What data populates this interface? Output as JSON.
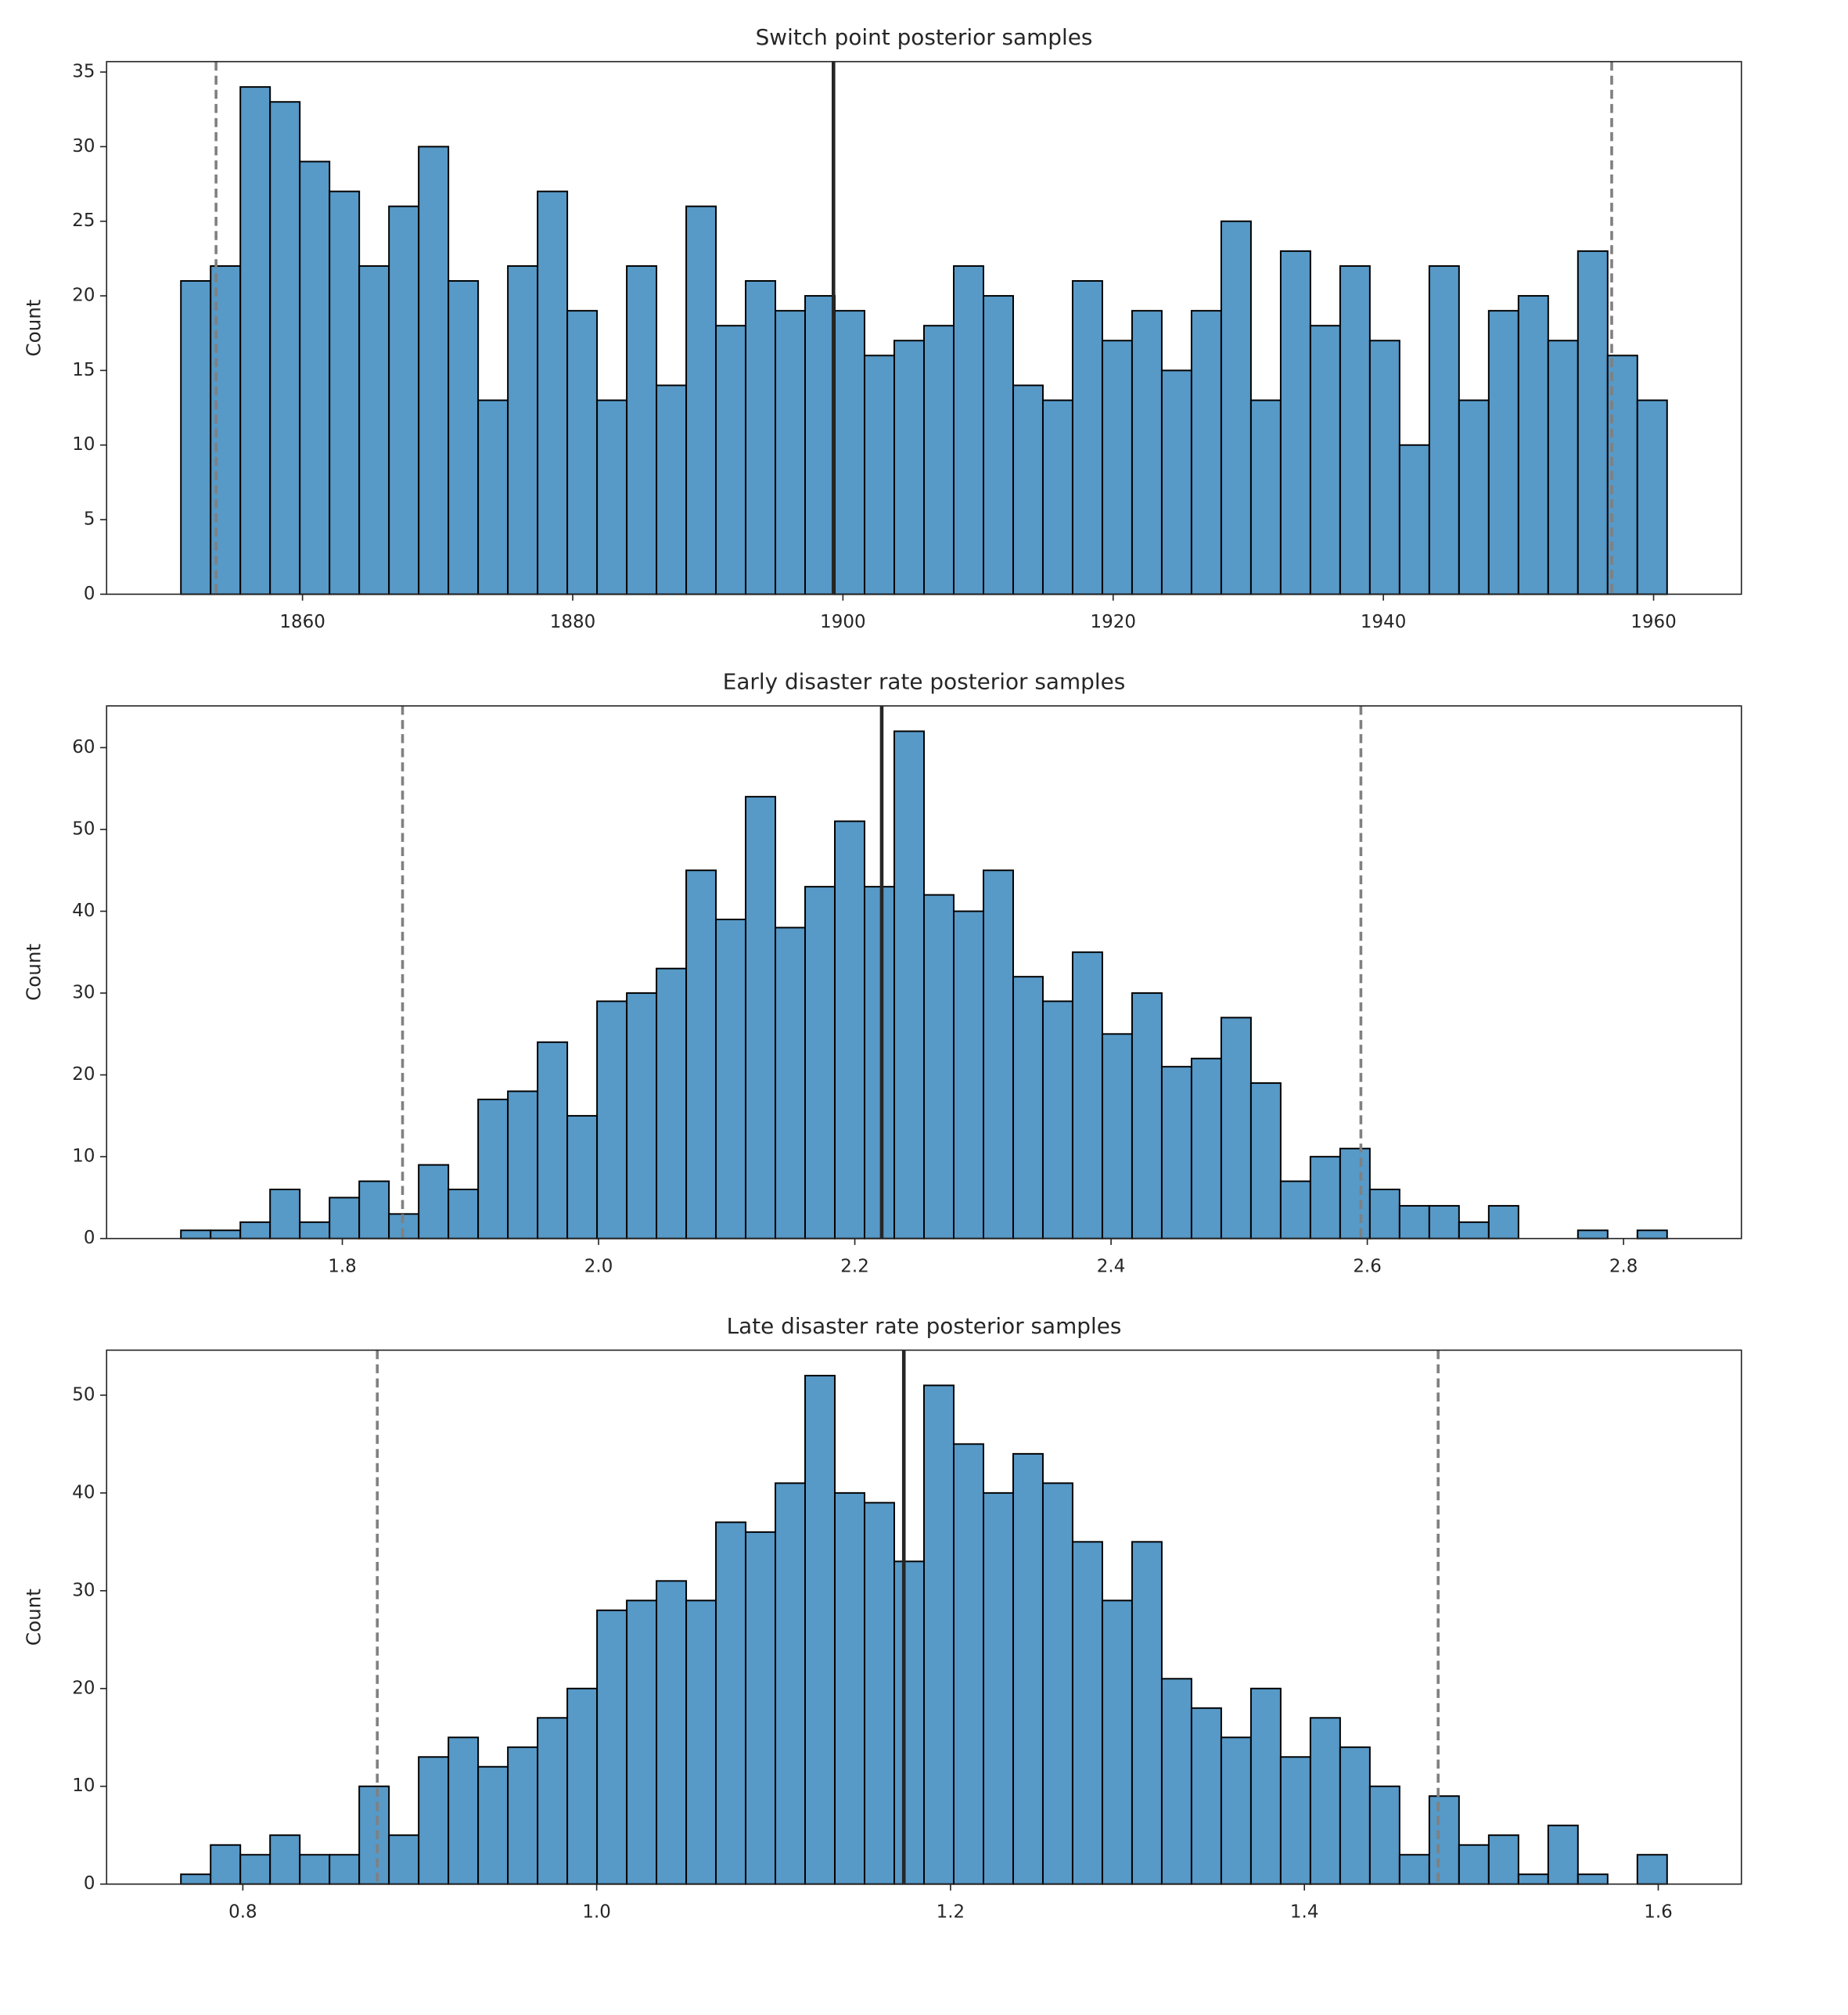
{
  "chart_data": [
    {
      "type": "histogram",
      "title": "Switch point posterior samples",
      "ylabel": "Count",
      "color": "#5799c7",
      "edgecolor": "#000000",
      "bins": [
        1851,
        1853.2,
        1855.4,
        1857.6,
        1859.8,
        1862,
        1864.2,
        1866.4,
        1868.6,
        1870.8,
        1873,
        1875.2,
        1877.4,
        1879.6,
        1881.8,
        1884,
        1886.2,
        1888.4,
        1890.6,
        1892.8,
        1895,
        1897.2,
        1899.4,
        1901.6,
        1903.8,
        1906,
        1908.2,
        1910.4,
        1912.6,
        1914.8,
        1917,
        1919.2,
        1921.4,
        1923.6,
        1925.8,
        1928,
        1930.2,
        1932.4,
        1934.6,
        1936.8,
        1939,
        1941.2,
        1943.4,
        1945.6,
        1947.8,
        1950,
        1952.2,
        1954.4,
        1956.6,
        1958.8,
        1961
      ],
      "values": [
        21,
        22,
        34,
        33,
        29,
        27,
        22,
        26,
        30,
        21,
        13,
        22,
        27,
        19,
        13,
        22,
        14,
        26,
        18,
        21,
        19,
        20,
        19,
        16,
        17,
        18,
        22,
        20,
        14,
        13,
        21,
        17,
        19,
        15,
        19,
        25,
        13,
        23,
        18,
        22,
        17,
        10,
        22,
        13,
        19,
        20,
        17,
        23,
        16,
        13
      ],
      "xlim": [
        1845.5,
        1966.5
      ],
      "ylim": [
        0,
        35.7
      ],
      "xticks": [
        1860,
        1880,
        1900,
        1920,
        1940,
        1960
      ],
      "yticks": [
        0,
        5,
        10,
        15,
        20,
        25,
        30,
        35
      ],
      "vlines": [
        {
          "x": 1853.6,
          "color": "#808080",
          "dashed": true
        },
        {
          "x": 1899.3,
          "color": "#262626",
          "dashed": false
        },
        {
          "x": 1956.9,
          "color": "#808080",
          "dashed": true
        }
      ]
    },
    {
      "type": "histogram",
      "title": "Early disaster rate posterior samples",
      "ylabel": "Count",
      "color": "#5799c7",
      "edgecolor": "#000000",
      "bins": [
        1.674,
        1.6972,
        1.7204,
        1.7436,
        1.7668,
        1.79,
        1.8132,
        1.8364,
        1.8596,
        1.8828,
        1.906,
        1.9292,
        1.9524,
        1.9756,
        1.9988,
        2.022,
        2.0452,
        2.0684,
        2.0916,
        2.1148,
        2.138,
        2.1612,
        2.1844,
        2.2076,
        2.2308,
        2.254,
        2.2772,
        2.3004,
        2.3236,
        2.3468,
        2.37,
        2.3932,
        2.4164,
        2.4396,
        2.4628,
        2.486,
        2.5092,
        2.5324,
        2.5556,
        2.5788,
        2.602,
        2.6252,
        2.6484,
        2.6716,
        2.6948,
        2.718,
        2.7412,
        2.7644,
        2.7876,
        2.8108,
        2.834
      ],
      "values": [
        1,
        1,
        2,
        6,
        2,
        5,
        7,
        3,
        9,
        6,
        17,
        18,
        24,
        15,
        29,
        30,
        33,
        45,
        39,
        54,
        38,
        43,
        51,
        43,
        62,
        42,
        40,
        45,
        32,
        29,
        35,
        25,
        30,
        21,
        22,
        27,
        19,
        7,
        10,
        11,
        6,
        4,
        4,
        2,
        4,
        0,
        0,
        1,
        0,
        1
      ],
      "xlim": [
        1.616,
        2.892
      ],
      "ylim": [
        0,
        65.1
      ],
      "xticks": [
        1.8,
        {
          "value": 2,
          "label": "2.0"
        },
        2.2,
        2.4,
        2.6,
        2.8
      ],
      "yticks": [
        0,
        10,
        20,
        30,
        40,
        50,
        60
      ],
      "vlines": [
        {
          "x": 1.847,
          "color": "#808080",
          "dashed": true
        },
        {
          "x": 2.221,
          "color": "#262626",
          "dashed": false
        },
        {
          "x": 2.595,
          "color": "#808080",
          "dashed": true
        }
      ]
    },
    {
      "type": "histogram",
      "title": "Late disaster rate posterior samples",
      "ylabel": "Count",
      "color": "#5799c7",
      "edgecolor": "#000000",
      "bins": [
        0.765,
        0.7818,
        0.7986,
        0.8154,
        0.8322,
        0.849,
        0.8658,
        0.8826,
        0.8994,
        0.9162,
        0.933,
        0.9498,
        0.9666,
        0.9834,
        1.0002,
        1.017,
        1.0338,
        1.0506,
        1.0674,
        1.0842,
        1.101,
        1.1178,
        1.1346,
        1.1514,
        1.1682,
        1.185,
        1.2018,
        1.2186,
        1.2354,
        1.2522,
        1.269,
        1.2858,
        1.3026,
        1.3194,
        1.3362,
        1.353,
        1.3698,
        1.3866,
        1.4034,
        1.4202,
        1.437,
        1.4538,
        1.4706,
        1.4874,
        1.5042,
        1.521,
        1.5378,
        1.5546,
        1.5714,
        1.5882,
        1.605
      ],
      "values": [
        1,
        4,
        3,
        5,
        3,
        3,
        10,
        5,
        13,
        15,
        12,
        14,
        17,
        20,
        28,
        29,
        31,
        29,
        37,
        36,
        41,
        52,
        40,
        39,
        33,
        51,
        45,
        40,
        44,
        41,
        35,
        29,
        35,
        21,
        18,
        15,
        20,
        13,
        17,
        14,
        10,
        3,
        9,
        4,
        5,
        1,
        6,
        1,
        0,
        3
      ],
      "xlim": [
        0.723,
        1.647
      ],
      "ylim": [
        0,
        54.6
      ],
      "xticks": [
        0.8,
        {
          "value": 1,
          "label": "1.0"
        },
        1.2,
        1.4,
        1.6
      ],
      "yticks": [
        0,
        10,
        20,
        30,
        40,
        50
      ],
      "vlines": [
        {
          "x": 0.876,
          "color": "#808080",
          "dashed": true
        },
        {
          "x": 1.1736,
          "color": "#262626",
          "dashed": false
        },
        {
          "x": 1.4756,
          "color": "#808080",
          "dashed": true
        }
      ]
    }
  ]
}
